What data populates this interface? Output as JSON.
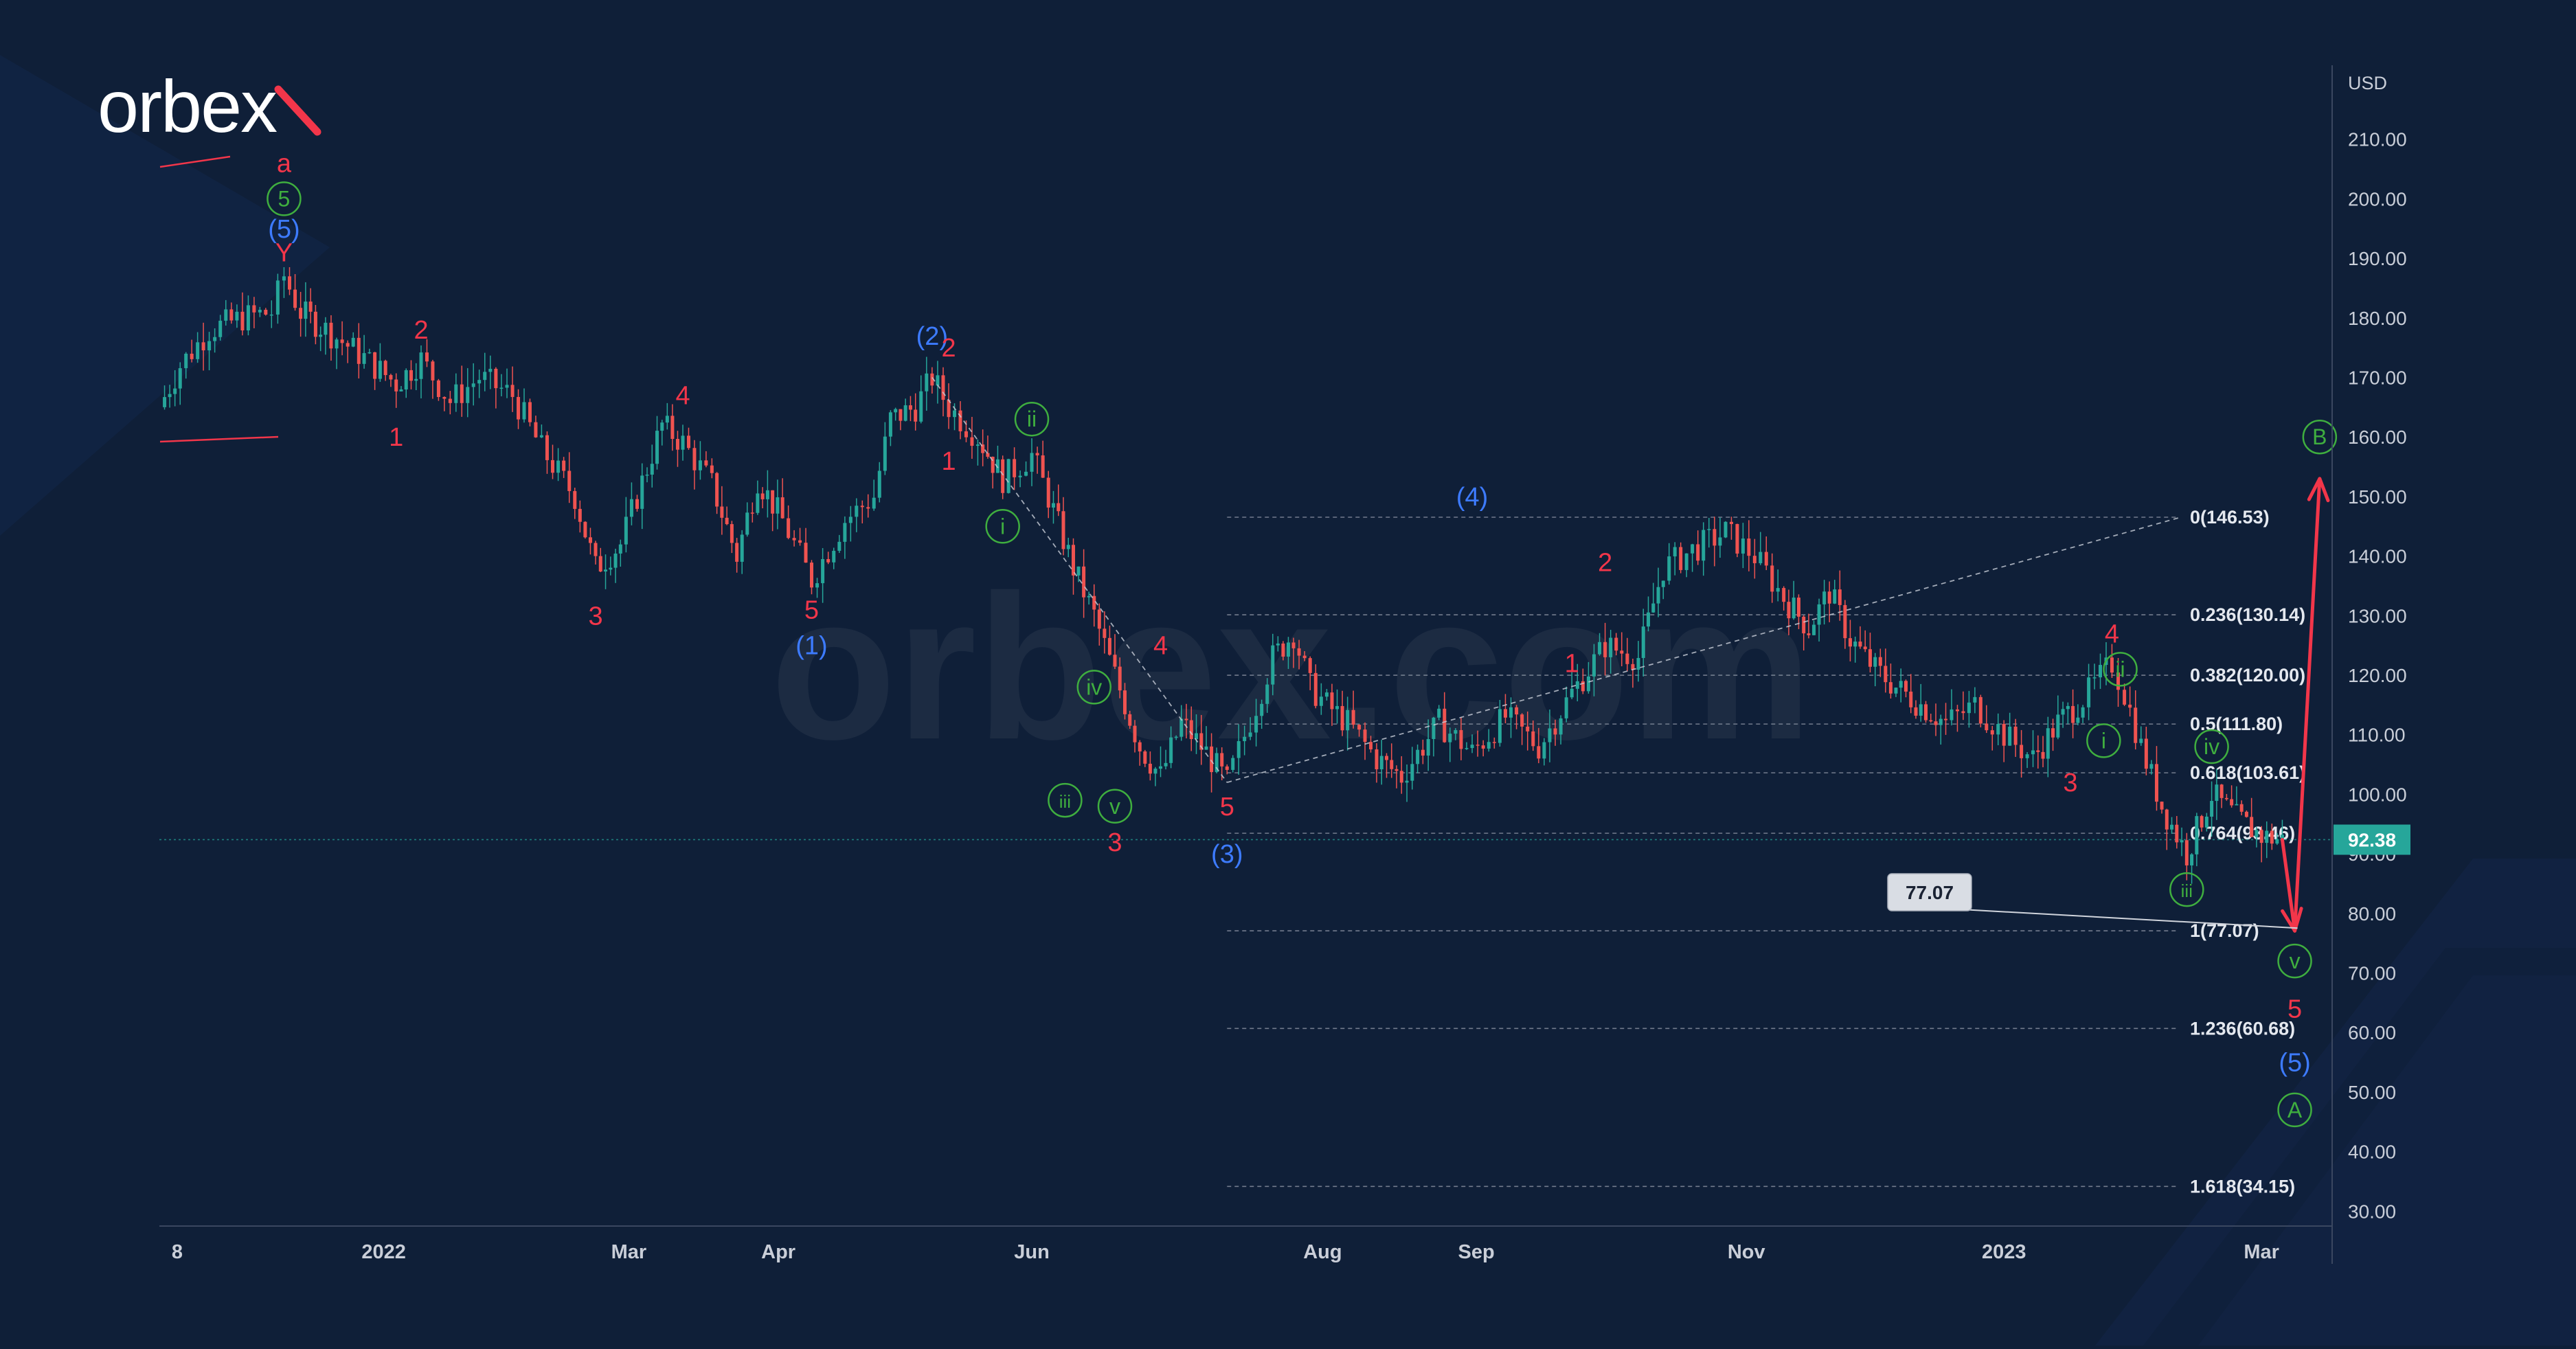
{
  "brand": {
    "logo_text": "orbex",
    "watermark_text": "orbex.com"
  },
  "colors": {
    "background": "#0f1f38",
    "candle_up": "#26a69a",
    "candle_down": "#ef5350",
    "wave_red": "#f2364a",
    "wave_blue": "#3d7bff",
    "wave_green": "#3fae3f",
    "fib_line": "#8b93a3",
    "axis_text": "#c9ced8",
    "price_badge": "#26a69a"
  },
  "chart_data": {
    "type": "candlestick",
    "title": "",
    "xlabel": "",
    "ylabel": "",
    "currency_label": "USD",
    "x_ticks": [
      "8",
      "2022",
      "Mar",
      "Apr",
      "Jun",
      "Aug",
      "Sep",
      "Nov",
      "2023",
      "Mar"
    ],
    "y_ticks": [
      "210.00",
      "200.00",
      "190.00",
      "180.00",
      "170.00",
      "160.00",
      "150.00",
      "140.00",
      "130.00",
      "120.00",
      "110.00",
      "100.00",
      "90.00",
      "80.00",
      "70.00",
      "60.00",
      "50.00",
      "40.00",
      "30.00"
    ],
    "ylim": [
      27.5,
      223
    ],
    "x_range": [
      "2021-11-08",
      "2023-04-15"
    ],
    "grid": false,
    "last_price": "92.38",
    "target_label": "77.07",
    "price_path": [
      [
        "2021-11-08",
        165
      ],
      [
        "2021-11-13",
        172
      ],
      [
        "2021-11-20",
        178
      ],
      [
        "2021-11-28",
        180
      ],
      [
        "2021-12-05",
        181
      ],
      [
        "2021-12-08",
        187
      ],
      [
        "2021-12-12",
        181
      ],
      [
        "2021-12-18",
        178
      ],
      [
        "2021-12-26",
        174
      ],
      [
        "2022-01-04",
        169
      ],
      [
        "2022-01-10",
        173
      ],
      [
        "2022-01-17",
        166
      ],
      [
        "2022-01-24",
        170
      ],
      [
        "2022-02-01",
        167
      ],
      [
        "2022-02-08",
        158
      ],
      [
        "2022-02-16",
        150
      ],
      [
        "2022-02-21",
        138
      ],
      [
        "2022-02-27",
        142
      ],
      [
        "2022-03-03",
        150
      ],
      [
        "2022-03-09",
        162
      ],
      [
        "2022-03-14",
        159
      ],
      [
        "2022-03-21",
        152
      ],
      [
        "2022-03-27",
        140
      ],
      [
        "2022-04-01",
        153
      ],
      [
        "2022-04-07",
        146
      ],
      [
        "2022-04-14",
        136
      ],
      [
        "2022-04-22",
        146
      ],
      [
        "2022-04-29",
        150
      ],
      [
        "2022-05-03",
        163
      ],
      [
        "2022-05-09",
        165
      ],
      [
        "2022-05-13",
        170
      ],
      [
        "2022-05-17",
        165
      ],
      [
        "2022-05-24",
        160
      ],
      [
        "2022-05-30",
        153
      ],
      [
        "2022-06-06",
        157
      ],
      [
        "2022-06-10",
        150
      ],
      [
        "2022-06-16",
        138
      ],
      [
        "2022-06-21",
        130
      ],
      [
        "2022-06-26",
        120
      ],
      [
        "2022-07-02",
        108
      ],
      [
        "2022-07-07",
        103
      ],
      [
        "2022-07-12",
        112
      ],
      [
        "2022-07-18",
        107
      ],
      [
        "2022-07-23",
        102
      ],
      [
        "2022-07-30",
        115
      ],
      [
        "2022-08-03",
        123
      ],
      [
        "2022-08-08",
        127
      ],
      [
        "2022-08-12",
        118
      ],
      [
        "2022-08-16",
        115
      ],
      [
        "2022-08-21",
        112
      ],
      [
        "2022-08-28",
        106
      ],
      [
        "2022-09-03",
        103
      ],
      [
        "2022-09-12",
        112
      ],
      [
        "2022-09-20",
        107
      ],
      [
        "2022-09-28",
        113
      ],
      [
        "2022-10-06",
        108
      ],
      [
        "2022-10-14",
        117
      ],
      [
        "2022-10-22",
        125
      ],
      [
        "2022-10-30",
        123
      ],
      [
        "2022-11-05",
        138
      ],
      [
        "2022-11-12",
        141
      ],
      [
        "2022-11-20",
        144
      ],
      [
        "2022-11-27",
        140
      ],
      [
        "2022-12-04",
        133
      ],
      [
        "2022-12-10",
        128
      ],
      [
        "2022-12-15",
        134
      ],
      [
        "2022-12-20",
        126
      ],
      [
        "2022-12-26",
        121
      ],
      [
        "2022-12-31",
        118
      ],
      [
        "2023-01-06",
        115
      ],
      [
        "2023-01-12",
        112
      ],
      [
        "2023-01-19",
        115
      ],
      [
        "2023-01-26",
        110
      ],
      [
        "2023-02-02",
        106
      ],
      [
        "2023-02-08",
        112
      ],
      [
        "2023-02-14",
        116
      ],
      [
        "2023-02-21",
        122
      ],
      [
        "2023-02-24",
        117
      ],
      [
        "2023-02-28",
        108
      ],
      [
        "2023-03-05",
        98
      ],
      [
        "2023-03-11",
        90
      ],
      [
        "2023-03-17",
        100
      ],
      [
        "2023-03-23",
        96
      ],
      [
        "2023-03-29",
        93
      ],
      [
        "2023-04-03",
        92.38
      ]
    ],
    "fib_levels": [
      {
        "ratio": "0",
        "price": 146.53,
        "label": "0(146.53)"
      },
      {
        "ratio": "0.236",
        "price": 130.14,
        "label": "0.236(130.14)"
      },
      {
        "ratio": "0.382",
        "price": 120.0,
        "label": "0.382(120.00)"
      },
      {
        "ratio": "0.5",
        "price": 111.8,
        "label": "0.5(111.80)"
      },
      {
        "ratio": "0.618",
        "price": 103.61,
        "label": "0.618(103.61)"
      },
      {
        "ratio": "0.764",
        "price": 93.46,
        "label": "0.764(93.46)"
      },
      {
        "ratio": "1",
        "price": 77.07,
        "label": "1(77.07)"
      },
      {
        "ratio": "1.236",
        "price": 60.68,
        "label": "1.236(60.68)"
      },
      {
        "ratio": "1.618",
        "price": 34.15,
        "label": "1.618(34.15)"
      }
    ],
    "projection": [
      {
        "date": "2023-04-03",
        "price": 92.38
      },
      {
        "date": "2023-04-06",
        "price": 77.07
      },
      {
        "date": "2023-04-12",
        "price": 153.0
      }
    ],
    "wave_labels": [
      {
        "text": "a",
        "color": "red",
        "date": "2021-12-08",
        "price": 206
      },
      {
        "text": "5",
        "color": "green",
        "circled": true,
        "date": "2021-12-08",
        "price": 200
      },
      {
        "text": "(5)",
        "color": "blue",
        "date": "2021-12-08",
        "price": 195
      },
      {
        "text": "Y",
        "color": "red",
        "date": "2021-12-08",
        "price": 191
      },
      {
        "text": "2",
        "color": "red",
        "date": "2022-01-10",
        "price": 178
      },
      {
        "text": "1",
        "color": "red",
        "date": "2022-01-04",
        "price": 160
      },
      {
        "text": "4",
        "color": "red",
        "date": "2022-03-14",
        "price": 167
      },
      {
        "text": "3",
        "color": "red",
        "date": "2022-02-21",
        "price": 130
      },
      {
        "text": "5",
        "color": "red",
        "date": "2022-04-14",
        "price": 131
      },
      {
        "text": "(1)",
        "color": "blue",
        "date": "2022-04-14",
        "price": 125
      },
      {
        "text": "(2)",
        "color": "blue",
        "date": "2022-05-13",
        "price": 177
      },
      {
        "text": "2",
        "color": "red",
        "date": "2022-05-17",
        "price": 175
      },
      {
        "text": "ii",
        "color": "green",
        "circled": true,
        "date": "2022-06-06",
        "price": 163
      },
      {
        "text": "1",
        "color": "red",
        "date": "2022-05-17",
        "price": 156
      },
      {
        "text": "i",
        "color": "green",
        "circled": true,
        "date": "2022-05-30",
        "price": 145
      },
      {
        "text": "4",
        "color": "red",
        "date": "2022-07-07",
        "price": 125
      },
      {
        "text": "iv",
        "color": "green",
        "circled": true,
        "date": "2022-06-21",
        "price": 118
      },
      {
        "text": "iii",
        "color": "green",
        "circled": true,
        "date": "2022-06-14",
        "price": 99
      },
      {
        "text": "v",
        "color": "green",
        "circled": true,
        "date": "2022-06-26",
        "price": 98
      },
      {
        "text": "3",
        "color": "red",
        "date": "2022-06-26",
        "price": 92
      },
      {
        "text": "5",
        "color": "red",
        "date": "2022-07-23",
        "price": 98
      },
      {
        "text": "(3)",
        "color": "blue",
        "date": "2022-07-23",
        "price": 90
      },
      {
        "text": "(4)",
        "color": "blue",
        "date": "2022-09-20",
        "price": 150
      },
      {
        "text": "2",
        "color": "red",
        "date": "2022-10-22",
        "price": 139
      },
      {
        "text": "1",
        "color": "red",
        "date": "2022-10-14",
        "price": 122
      },
      {
        "text": "4",
        "color": "red",
        "date": "2023-02-21",
        "price": 127
      },
      {
        "text": "ii",
        "color": "green",
        "circled": true,
        "date": "2023-02-23",
        "price": 121
      },
      {
        "text": "i",
        "color": "green",
        "circled": true,
        "date": "2023-02-19",
        "price": 109
      },
      {
        "text": "3",
        "color": "red",
        "date": "2023-02-11",
        "price": 102
      },
      {
        "text": "iv",
        "color": "green",
        "circled": true,
        "date": "2023-03-17",
        "price": 108
      },
      {
        "text": "iii",
        "color": "green",
        "circled": true,
        "date": "2023-03-11",
        "price": 84
      },
      {
        "text": "v",
        "color": "green",
        "circled": true,
        "date": "2023-04-06",
        "price": 72
      },
      {
        "text": "5",
        "color": "red",
        "date": "2023-04-06",
        "price": 64
      },
      {
        "text": "(5)",
        "color": "blue",
        "date": "2023-04-06",
        "price": 55
      },
      {
        "text": "A",
        "color": "green",
        "circled": true,
        "date": "2023-04-06",
        "price": 47
      },
      {
        "text": "B",
        "color": "green",
        "circled": true,
        "date": "2023-04-12",
        "price": 160
      }
    ]
  }
}
